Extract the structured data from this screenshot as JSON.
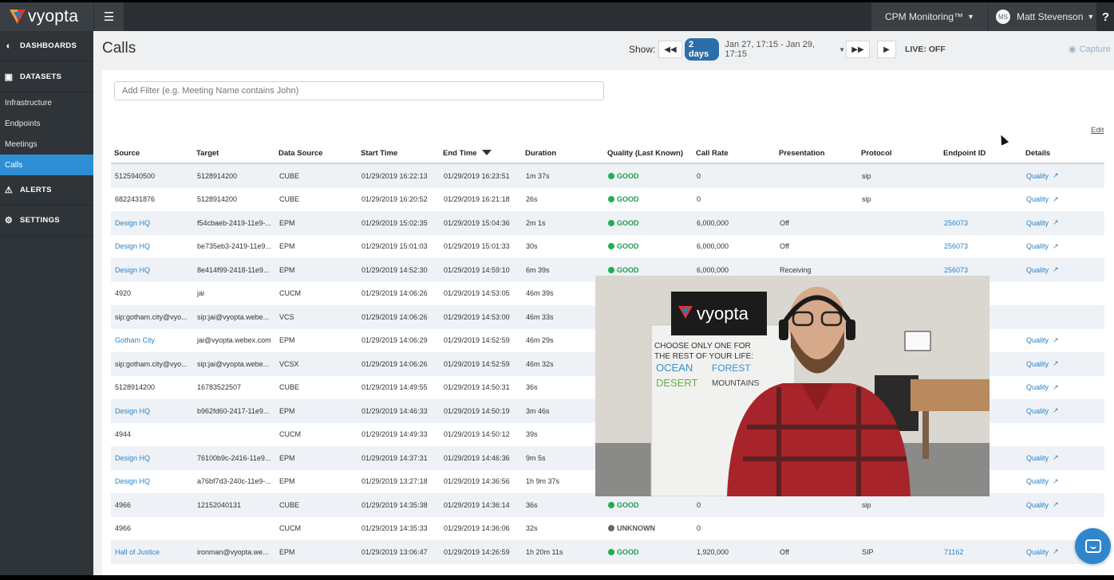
{
  "app": {
    "logo_text": "vyopta",
    "brand_colors": {
      "logo_red": "#e4322b",
      "logo_orange": "#f39c32",
      "logo_blue": "#2a7ab8",
      "accent": "#2e8fd6",
      "good": "#1fae52"
    }
  },
  "topbar": {
    "menu_icon": "hamburger-icon",
    "cpm_label": "CPM Monitoring™",
    "user_initials": "MS",
    "user_name": "Matt Stevenson",
    "help_label": "?"
  },
  "sidebar": {
    "dashboards": "DASHBOARDS",
    "datasets": "DATASETS",
    "items": [
      {
        "label": "Infrastructure"
      },
      {
        "label": "Endpoints"
      },
      {
        "label": "Meetings"
      },
      {
        "label": "Calls",
        "active": true
      }
    ],
    "alerts": "ALERTS",
    "settings": "SETTINGS"
  },
  "main": {
    "title": "Calls",
    "show_label": "Show:",
    "range_pill": "2 days",
    "range_text": "Jan 27, 17:15 - Jan 29, 17:15",
    "live_label": "LIVE: OFF",
    "capture_label": "Capture",
    "filter_placeholder": "Add Filter (e.g. Meeting Name contains John)",
    "edit_label": "Edit"
  },
  "table": {
    "columns": [
      "Source",
      "Target",
      "Data Source",
      "Start Time",
      "End Time",
      "Duration",
      "Quality (Last Known)",
      "Call Rate",
      "Presentation",
      "Protocol",
      "Endpoint ID",
      "Details"
    ],
    "rows": [
      {
        "source": "5125940500",
        "target": "5128914200",
        "data_source": "CUBE",
        "start": "01/29/2019 16:22:13",
        "end": "01/29/2019 16:23:51",
        "duration": "1m 37s",
        "quality": "GOOD",
        "rate": "0",
        "presentation": "",
        "protocol": "sip",
        "endpoint": "",
        "details": "Quality"
      },
      {
        "source": "6822431876",
        "target": "5128914200",
        "data_source": "CUBE",
        "start": "01/29/2019 16:20:52",
        "end": "01/29/2019 16:21:18",
        "duration": "26s",
        "quality": "GOOD",
        "rate": "0",
        "presentation": "",
        "protocol": "sip",
        "endpoint": "",
        "details": "Quality"
      },
      {
        "source": "Design HQ",
        "source_link": true,
        "target": "f54cbaeb-2419-11e9-...",
        "data_source": "EPM",
        "start": "01/29/2019 15:02:35",
        "end": "01/29/2019 15:04:36",
        "duration": "2m 1s",
        "quality": "GOOD",
        "rate": "6,000,000",
        "presentation": "Off",
        "protocol": "",
        "endpoint": "256073",
        "details": "Quality"
      },
      {
        "source": "Design HQ",
        "source_link": true,
        "target": "be735eb3-2419-11e9...",
        "data_source": "EPM",
        "start": "01/29/2019 15:01:03",
        "end": "01/29/2019 15:01:33",
        "duration": "30s",
        "quality": "GOOD",
        "rate": "6,000,000",
        "presentation": "Off",
        "protocol": "",
        "endpoint": "256073",
        "details": "Quality"
      },
      {
        "source": "Design HQ",
        "source_link": true,
        "target": "8e414f99-2418-11e9...",
        "data_source": "EPM",
        "start": "01/29/2019 14:52:30",
        "end": "01/29/2019 14:59:10",
        "duration": "6m 39s",
        "quality": "GOOD",
        "rate": "6,000,000",
        "presentation": "Receiving",
        "protocol": "",
        "endpoint": "256073",
        "details": "Quality"
      },
      {
        "source": "4920",
        "target": "jai",
        "data_source": "CUCM",
        "start": "01/29/2019 14:06:26",
        "end": "01/29/2019 14:53:05",
        "duration": "46m 39s",
        "quality": "",
        "rate": "",
        "presentation": "",
        "protocol": "",
        "endpoint": "",
        "details": ""
      },
      {
        "source": "sip:gotham.city@vyo...",
        "target": "sip:jai@vyopta.webe...",
        "data_source": "VCS",
        "start": "01/29/2019 14:06:26",
        "end": "01/29/2019 14:53:00",
        "duration": "46m 33s",
        "quality": "",
        "rate": "",
        "presentation": "",
        "protocol": "",
        "endpoint": "",
        "details": ""
      },
      {
        "source": "Gotham City",
        "source_link": true,
        "target": "jai@vyopta.webex.com",
        "data_source": "EPM",
        "start": "01/29/2019 14:06:29",
        "end": "01/29/2019 14:52:59",
        "duration": "46m 29s",
        "quality": "",
        "rate": "",
        "presentation": "",
        "protocol": "",
        "endpoint": "",
        "details": "Quality"
      },
      {
        "source": "sip:gotham.city@vyo...",
        "target": "sip:jai@vyopta.webe...",
        "data_source": "VCSX",
        "start": "01/29/2019 14:06:26",
        "end": "01/29/2019 14:52:59",
        "duration": "46m 32s",
        "quality": "",
        "rate": "",
        "presentation": "",
        "protocol": "",
        "endpoint": "",
        "details": "Quality"
      },
      {
        "source": "5128914200",
        "target": "16783522507",
        "data_source": "CUBE",
        "start": "01/29/2019 14:49:55",
        "end": "01/29/2019 14:50:31",
        "duration": "36s",
        "quality": "",
        "rate": "",
        "presentation": "",
        "protocol": "",
        "endpoint": "",
        "details": "Quality"
      },
      {
        "source": "Design HQ",
        "source_link": true,
        "target": "b962fd60-2417-11e9...",
        "data_source": "EPM",
        "start": "01/29/2019 14:46:33",
        "end": "01/29/2019 14:50:19",
        "duration": "3m 46s",
        "quality": "",
        "rate": "",
        "presentation": "",
        "protocol": "",
        "endpoint": "",
        "details": "Quality"
      },
      {
        "source": "4944",
        "target": "",
        "data_source": "CUCM",
        "start": "01/29/2019 14:49:33",
        "end": "01/29/2019 14:50:12",
        "duration": "39s",
        "quality": "",
        "rate": "",
        "presentation": "",
        "protocol": "",
        "endpoint": "",
        "details": ""
      },
      {
        "source": "Design HQ",
        "source_link": true,
        "target": "76100b9c-2416-11e9...",
        "data_source": "EPM",
        "start": "01/29/2019 14:37:31",
        "end": "01/29/2019 14:46:36",
        "duration": "9m 5s",
        "quality": "",
        "rate": "",
        "presentation": "",
        "protocol": "",
        "endpoint": "",
        "details": "Quality"
      },
      {
        "source": "Design HQ",
        "source_link": true,
        "target": "a76bf7d3-240c-11e9-...",
        "data_source": "EPM",
        "start": "01/29/2019 13:27:18",
        "end": "01/29/2019 14:36:56",
        "duration": "1h 9m 37s",
        "quality": "",
        "rate": "",
        "presentation": "",
        "protocol": "",
        "endpoint": "",
        "details": "Quality"
      },
      {
        "source": "4966",
        "target": "12152040131",
        "data_source": "CUBE",
        "start": "01/29/2019 14:35:38",
        "end": "01/29/2019 14:36:14",
        "duration": "36s",
        "quality": "GOOD",
        "rate": "0",
        "presentation": "",
        "protocol": "sip",
        "endpoint": "",
        "details": "Quality"
      },
      {
        "source": "4966",
        "target": "",
        "data_source": "CUCM",
        "start": "01/29/2019 14:35:33",
        "end": "01/29/2019 14:36:06",
        "duration": "32s",
        "quality": "UNKNOWN",
        "rate": "0",
        "presentation": "",
        "protocol": "",
        "endpoint": "",
        "details": ""
      },
      {
        "source": "Hall of Justice",
        "source_link": true,
        "target": "ironman@vyopta.we...",
        "data_source": "EPM",
        "start": "01/29/2019 13:06:47",
        "end": "01/29/2019 14:26:59",
        "duration": "1h 20m 11s",
        "quality": "GOOD",
        "rate": "1,920,000",
        "presentation": "Off",
        "protocol": "SIP",
        "endpoint": "71162",
        "details": "Quality"
      }
    ]
  },
  "video": {
    "sign_text": "vyopta",
    "whiteboard_lines": [
      "CHOOSE ONLY ONE FOR",
      "THE REST OF YOUR LIFE:"
    ],
    "whiteboard_words": [
      "OCEAN",
      "FOREST",
      "DESERT",
      "MOUNTAINS"
    ]
  }
}
